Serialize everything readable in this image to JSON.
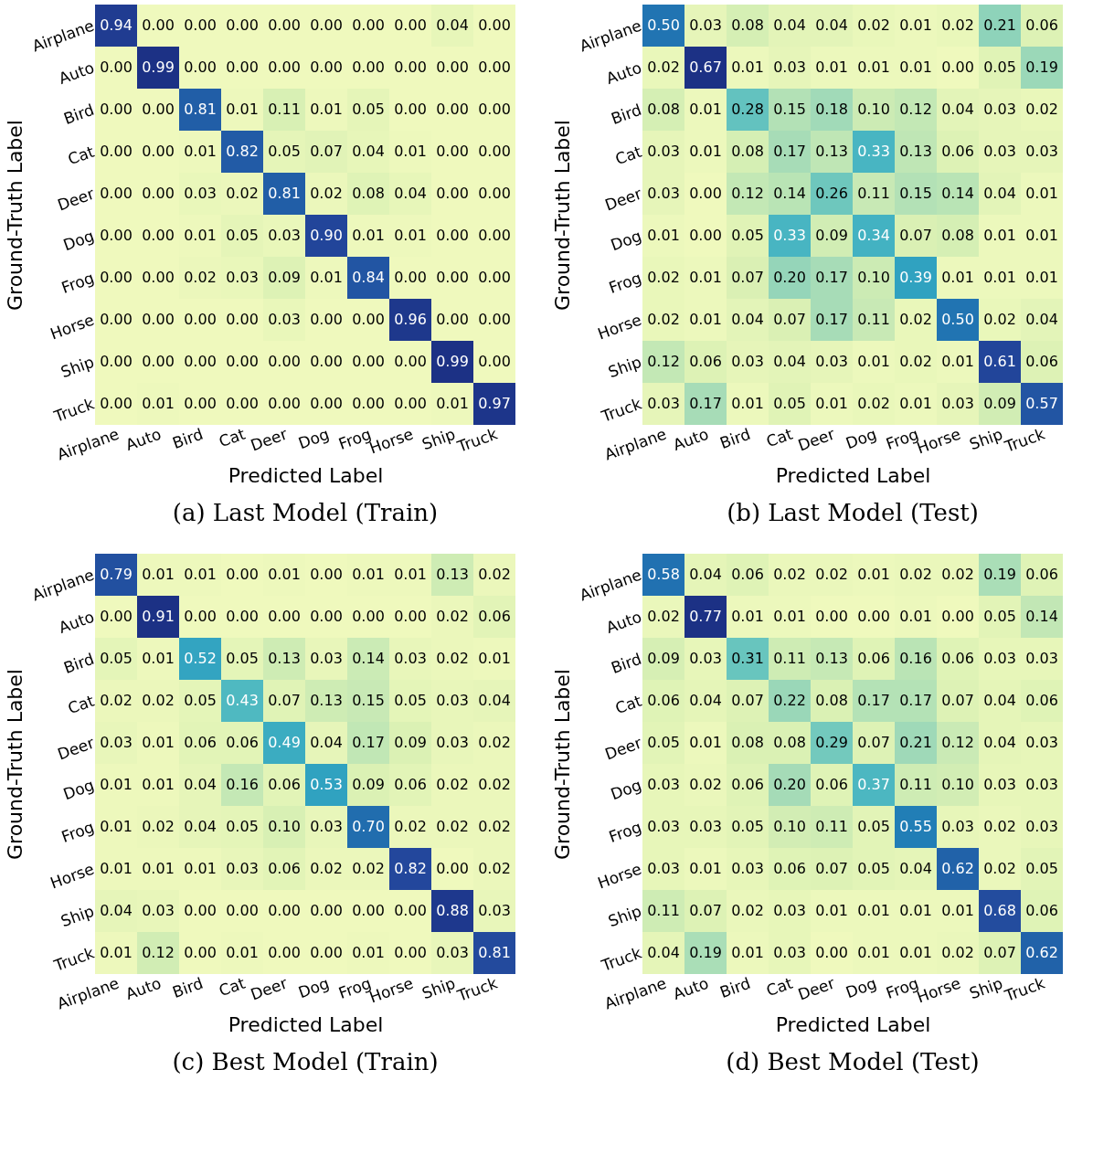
{
  "chart_data": [
    {
      "type": "heatmap",
      "title": "(a)  Last Model (Train)",
      "xlabel": "Predicted Label",
      "ylabel": "Ground-Truth Label",
      "categories": [
        "Airplane",
        "Auto",
        "Bird",
        "Cat",
        "Deer",
        "Dog",
        "Frog",
        "Horse",
        "Ship",
        "Truck"
      ],
      "y_categories": [
        "Airplane",
        "Auto",
        "Bird",
        "Cat",
        "Deer",
        "Dog",
        "Frog",
        "Horse",
        "Ship",
        "Truck"
      ],
      "cells": [
        [
          0.94,
          0.0,
          0.0,
          0.0,
          0.0,
          0.0,
          0.0,
          0.0,
          0.04,
          0.0
        ],
        [
          0.0,
          0.99,
          0.0,
          0.0,
          0.0,
          0.0,
          0.0,
          0.0,
          0.0,
          0.0
        ],
        [
          0.0,
          0.0,
          0.81,
          0.01,
          0.11,
          0.01,
          0.05,
          0.0,
          0.0,
          0.0
        ],
        [
          0.0,
          0.0,
          0.01,
          0.82,
          0.05,
          0.07,
          0.04,
          0.01,
          0.0,
          0.0
        ],
        [
          0.0,
          0.0,
          0.03,
          0.02,
          0.81,
          0.02,
          0.08,
          0.04,
          0.0,
          0.0
        ],
        [
          0.0,
          0.0,
          0.01,
          0.05,
          0.03,
          0.9,
          0.01,
          0.01,
          0.0,
          0.0
        ],
        [
          0.0,
          0.0,
          0.02,
          0.03,
          0.09,
          0.01,
          0.84,
          0.0,
          0.0,
          0.0
        ],
        [
          0.0,
          0.0,
          0.0,
          0.0,
          0.03,
          0.0,
          0.0,
          0.96,
          0.0,
          0.0
        ],
        [
          0.0,
          0.0,
          0.0,
          0.0,
          0.0,
          0.0,
          0.0,
          0.0,
          0.99,
          0.0
        ],
        [
          0.0,
          0.01,
          0.0,
          0.0,
          0.0,
          0.0,
          0.0,
          0.0,
          0.01,
          0.97
        ]
      ],
      "cell_labels": [
        [
          "0.94",
          "0.00",
          "0.00",
          "0.00",
          "0.00",
          "0.00",
          "0.00",
          "0.00",
          "0.04",
          "0.00"
        ],
        [
          "0.00",
          "0.99",
          "0.00",
          "0.00",
          "0.00",
          "0.00",
          "0.00",
          "0.00",
          "0.00",
          "0.00"
        ],
        [
          "0.00",
          "0.00",
          "0.81",
          "0.01",
          "0.11",
          "0.01",
          "0.05",
          "0.00",
          "0.00",
          "0.00"
        ],
        [
          "0.00",
          "0.00",
          "0.01",
          "0.82",
          "0.05",
          "0.07",
          "0.04",
          "0.01",
          "0.00",
          "0.00"
        ],
        [
          "0.00",
          "0.00",
          "0.03",
          "0.02",
          "0.81",
          "0.02",
          "0.08",
          "0.04",
          "0.00",
          "0.00"
        ],
        [
          "0.00",
          "0.00",
          "0.01",
          "0.05",
          "0.03",
          "0.90",
          "0.01",
          "0.01",
          "0.00",
          "0.00"
        ],
        [
          "0.00",
          "0.00",
          "0.02",
          "0.03",
          "0.09",
          "0.01",
          "0.84",
          "0.00",
          "0.00",
          "0.00"
        ],
        [
          "0.00",
          "0.00",
          "0.00",
          "0.00",
          "0.03",
          "0.00",
          "0.00",
          "0.96",
          "0.00",
          "0.00"
        ],
        [
          "0.00",
          "0.00",
          "0.00",
          "0.00",
          "0.00",
          "0.00",
          "0.00",
          "0.00",
          "0.99",
          "0.00"
        ],
        [
          "0.00",
          "0.01",
          "0.00",
          "0.00",
          "0.00",
          "0.00",
          "0.00",
          "0.00",
          "0.01",
          "0.97"
        ]
      ]
    },
    {
      "type": "heatmap",
      "title": "(b)  Last Model (Test)",
      "xlabel": "Predicted Label",
      "ylabel": "Ground-Truth Label",
      "categories": [
        "Airplane",
        "Auto",
        "Bird",
        "Cat",
        "Deer",
        "Dog",
        "Frog",
        "Horse",
        "Ship",
        "Truck"
      ],
      "y_categories": [
        "Airplane",
        "Auto",
        "Bird",
        "Cat",
        "Deer",
        "Dog",
        "Frog",
        "Horse",
        "Ship",
        "Truck"
      ],
      "cells": [
        [
          0.5,
          0.03,
          0.08,
          0.04,
          0.04,
          0.02,
          0.01,
          0.02,
          0.21,
          0.06
        ],
        [
          0.02,
          0.67,
          0.01,
          0.03,
          0.01,
          0.01,
          0.01,
          0.0,
          0.05,
          0.19
        ],
        [
          0.08,
          0.01,
          0.28,
          0.15,
          0.18,
          0.1,
          0.12,
          0.04,
          0.03,
          0.02
        ],
        [
          0.03,
          0.01,
          0.08,
          0.17,
          0.13,
          0.33,
          0.13,
          0.06,
          0.03,
          0.03
        ],
        [
          0.03,
          0.0,
          0.12,
          0.14,
          0.26,
          0.11,
          0.15,
          0.14,
          0.04,
          0.01
        ],
        [
          0.01,
          0.0,
          0.05,
          0.33,
          0.09,
          0.34,
          0.07,
          0.08,
          0.01,
          0.01
        ],
        [
          0.02,
          0.01,
          0.07,
          0.2,
          0.17,
          0.1,
          0.39,
          0.01,
          0.01,
          0.01
        ],
        [
          0.02,
          0.01,
          0.04,
          0.07,
          0.17,
          0.11,
          0.02,
          0.5,
          0.02,
          0.04
        ],
        [
          0.12,
          0.06,
          0.03,
          0.04,
          0.03,
          0.01,
          0.02,
          0.01,
          0.61,
          0.06
        ],
        [
          0.03,
          0.17,
          0.01,
          0.05,
          0.01,
          0.02,
          0.01,
          0.03,
          0.09,
          0.57
        ]
      ],
      "cell_labels": [
        [
          "0.50",
          "0.03",
          "0.08",
          "0.04",
          "0.04",
          "0.02",
          "0.01",
          "0.02",
          "0.21",
          "0.06"
        ],
        [
          "0.02",
          "0.67",
          "0.01",
          "0.03",
          "0.01",
          "0.01",
          "0.01",
          "0.00",
          "0.05",
          "0.19"
        ],
        [
          "0.08",
          "0.01",
          "0.28",
          "0.15",
          "0.18",
          "0.10",
          "0.12",
          "0.04",
          "0.03",
          "0.02"
        ],
        [
          "0.03",
          "0.01",
          "0.08",
          "0.17",
          "0.13",
          "0.33",
          "0.13",
          "0.06",
          "0.03",
          "0.03"
        ],
        [
          "0.03",
          "0.00",
          "0.12",
          "0.14",
          "0.26",
          "0.11",
          "0.15",
          "0.14",
          "0.04",
          "0.01"
        ],
        [
          "0.01",
          "0.00",
          "0.05",
          "0.33",
          "0.09",
          "0.34",
          "0.07",
          "0.08",
          "0.01",
          "0.01"
        ],
        [
          "0.02",
          "0.01",
          "0.07",
          "0.20",
          "0.17",
          "0.10",
          "0.39",
          "0.01",
          "0.01",
          "0.01"
        ],
        [
          "0.02",
          "0.01",
          "0.04",
          "0.07",
          "0.17",
          "0.11",
          "0.02",
          "0.50",
          "0.02",
          "0.04"
        ],
        [
          "0.12",
          "0.06",
          "0.03",
          "0.04",
          "0.03",
          "0.01",
          "0.02",
          "0.01",
          "0.61",
          "0.06"
        ],
        [
          "0.03",
          "0.17",
          "0.01",
          "0.05",
          "0.01",
          "0.02",
          "0.01",
          "0.03",
          "0.09",
          "0.57"
        ]
      ]
    },
    {
      "type": "heatmap",
      "title": "(c)  Best Model (Train)",
      "xlabel": "Predicted Label",
      "ylabel": "Ground-Truth Label",
      "categories": [
        "Airplane",
        "Auto",
        "Bird",
        "Cat",
        "Deer",
        "Dog",
        "Frog",
        "Horse",
        "Ship",
        "Truck"
      ],
      "y_categories": [
        "Airplane",
        "Auto",
        "Bird",
        "Cat",
        "Deer",
        "Dog",
        "Frog",
        "Horse",
        "Ship",
        "Truck"
      ],
      "cells": [
        [
          0.79,
          0.01,
          0.01,
          0.0,
          0.01,
          0.0,
          0.01,
          0.01,
          0.13,
          0.02
        ],
        [
          0.0,
          0.91,
          0.0,
          0.0,
          0.0,
          0.0,
          0.0,
          0.0,
          0.02,
          0.06
        ],
        [
          0.05,
          0.01,
          0.52,
          0.05,
          0.13,
          0.03,
          0.14,
          0.03,
          0.02,
          0.01
        ],
        [
          0.02,
          0.02,
          0.05,
          0.43,
          0.07,
          0.13,
          0.15,
          0.05,
          0.03,
          0.04
        ],
        [
          0.03,
          0.01,
          0.06,
          0.06,
          0.49,
          0.04,
          0.17,
          0.09,
          0.03,
          0.02
        ],
        [
          0.01,
          0.01,
          0.04,
          0.16,
          0.06,
          0.53,
          0.09,
          0.06,
          0.02,
          0.02
        ],
        [
          0.01,
          0.02,
          0.04,
          0.05,
          0.1,
          0.03,
          0.7,
          0.02,
          0.02,
          0.02
        ],
        [
          0.01,
          0.01,
          0.01,
          0.03,
          0.06,
          0.02,
          0.02,
          0.82,
          0.0,
          0.02
        ],
        [
          0.04,
          0.03,
          0.0,
          0.0,
          0.0,
          0.0,
          0.0,
          0.0,
          0.88,
          0.03
        ],
        [
          0.01,
          0.12,
          0.0,
          0.01,
          0.0,
          0.0,
          0.01,
          0.0,
          0.03,
          0.81
        ]
      ],
      "cell_labels": [
        [
          "0.79",
          "0.01",
          "0.01",
          "0.00",
          "0.01",
          "0.00",
          "0.01",
          "0.01",
          "0.13",
          "0.02"
        ],
        [
          "0.00",
          "0.91",
          "0.00",
          "0.00",
          "0.00",
          "0.00",
          "0.00",
          "0.00",
          "0.02",
          "0.06"
        ],
        [
          "0.05",
          "0.01",
          "0.52",
          "0.05",
          "0.13",
          "0.03",
          "0.14",
          "0.03",
          "0.02",
          "0.01"
        ],
        [
          "0.02",
          "0.02",
          "0.05",
          "0.43",
          "0.07",
          "0.13",
          "0.15",
          "0.05",
          "0.03",
          "0.04"
        ],
        [
          "0.03",
          "0.01",
          "0.06",
          "0.06",
          "0.49",
          "0.04",
          "0.17",
          "0.09",
          "0.03",
          "0.02"
        ],
        [
          "0.01",
          "0.01",
          "0.04",
          "0.16",
          "0.06",
          "0.53",
          "0.09",
          "0.06",
          "0.02",
          "0.02"
        ],
        [
          "0.01",
          "0.02",
          "0.04",
          "0.05",
          "0.10",
          "0.03",
          "0.70",
          "0.02",
          "0.02",
          "0.02"
        ],
        [
          "0.01",
          "0.01",
          "0.01",
          "0.03",
          "0.06",
          "0.02",
          "0.02",
          "0.82",
          "0.00",
          "0.02"
        ],
        [
          "0.04",
          "0.03",
          "0.00",
          "0.00",
          "0.00",
          "0.00",
          "0.00",
          "0.00",
          "0.88",
          "0.03"
        ],
        [
          "0.01",
          "0.12",
          "0.00",
          "0.01",
          "0.00",
          "0.00",
          "0.01",
          "0.00",
          "0.03",
          "0.81"
        ]
      ]
    },
    {
      "type": "heatmap",
      "title": "(d)  Best Model (Test)",
      "xlabel": "Predicted Label",
      "ylabel": "Ground-Truth Label",
      "categories": [
        "Airplane",
        "Auto",
        "Bird",
        "Cat",
        "Deer",
        "Dog",
        "Frog",
        "Horse",
        "Ship",
        "Truck"
      ],
      "y_categories": [
        "Airplane",
        "Auto",
        "Bird",
        "Cat",
        "Deer",
        "Dog",
        "Frog",
        "Horse",
        "Ship",
        "Truck"
      ],
      "cells": [
        [
          0.58,
          0.04,
          0.06,
          0.02,
          0.02,
          0.01,
          0.02,
          0.02,
          0.19,
          0.06
        ],
        [
          0.02,
          0.77,
          0.01,
          0.01,
          0.0,
          0.0,
          0.01,
          0.0,
          0.05,
          0.14
        ],
        [
          0.09,
          0.03,
          0.31,
          0.11,
          0.13,
          0.06,
          0.16,
          0.06,
          0.03,
          0.03
        ],
        [
          0.06,
          0.04,
          0.07,
          0.22,
          0.08,
          0.17,
          0.17,
          0.07,
          0.04,
          0.06
        ],
        [
          0.05,
          0.01,
          0.08,
          0.08,
          0.29,
          0.07,
          0.21,
          0.12,
          0.04,
          0.03
        ],
        [
          0.03,
          0.02,
          0.06,
          0.2,
          0.06,
          0.37,
          0.11,
          0.1,
          0.03,
          0.03
        ],
        [
          0.03,
          0.03,
          0.05,
          0.1,
          0.11,
          0.05,
          0.55,
          0.03,
          0.02,
          0.03
        ],
        [
          0.03,
          0.01,
          0.03,
          0.06,
          0.07,
          0.05,
          0.04,
          0.62,
          0.02,
          0.05
        ],
        [
          0.11,
          0.07,
          0.02,
          0.03,
          0.01,
          0.01,
          0.01,
          0.01,
          0.68,
          0.06
        ],
        [
          0.04,
          0.19,
          0.01,
          0.03,
          0.0,
          0.01,
          0.01,
          0.02,
          0.07,
          0.62
        ]
      ],
      "cell_labels": [
        [
          "0.58",
          "0.04",
          "0.06",
          "0.02",
          "0.02",
          "0.01",
          "0.02",
          "0.02",
          "0.19",
          "0.06"
        ],
        [
          "0.02",
          "0.77",
          "0.01",
          "0.01",
          "0.00",
          "0.00",
          "0.01",
          "0.00",
          "0.05",
          "0.14"
        ],
        [
          "0.09",
          "0.03",
          "0.31",
          "0.11",
          "0.13",
          "0.06",
          "0.16",
          "0.06",
          "0.03",
          "0.03"
        ],
        [
          "0.06",
          "0.04",
          "0.07",
          "0.22",
          "0.08",
          "0.17",
          "0.17",
          "0.07",
          "0.04",
          "0.06"
        ],
        [
          "0.05",
          "0.01",
          "0.08",
          "0.08",
          "0.29",
          "0.07",
          "0.21",
          "0.12",
          "0.04",
          "0.03"
        ],
        [
          "0.03",
          "0.02",
          "0.06",
          "0.20",
          "0.06",
          "0.37",
          "0.11",
          "0.10",
          "0.03",
          "0.03"
        ],
        [
          "0.03",
          "0.03",
          "0.05",
          "0.10",
          "0.11",
          "0.05",
          "0.55",
          "0.03",
          "0.02",
          "0.03"
        ],
        [
          "0.03",
          "0.01",
          "0.03",
          "0.06",
          "0.07",
          "0.05",
          "0.04",
          "0.62",
          "0.02",
          "0.05"
        ],
        [
          "0.11",
          "0.07",
          "0.02",
          "0.03",
          "0.01",
          "0.01",
          "0.01",
          "0.01",
          "0.68",
          "0.06"
        ],
        [
          "0.04",
          "0.19",
          "0.01",
          "0.03",
          "0.00",
          "0.01",
          "0.01",
          "0.02",
          "0.07",
          "0.62"
        ]
      ]
    }
  ]
}
